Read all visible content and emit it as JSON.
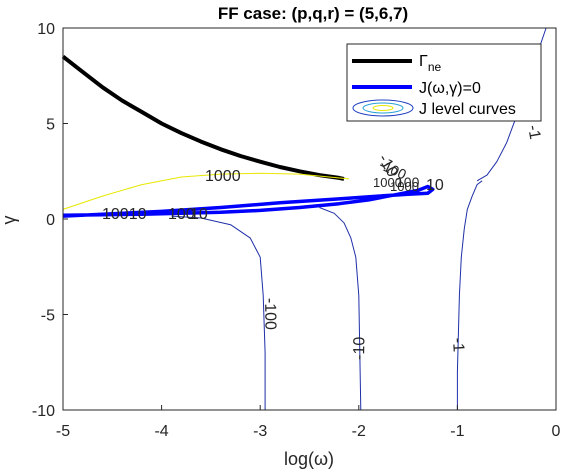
{
  "chart_data": {
    "type": "line",
    "title": "FF case: (p,q,r) = (5,6,7)",
    "xlabel": "log(ω)",
    "ylabel": "γ",
    "xlim": [
      -5,
      0
    ],
    "ylim": [
      -10,
      10
    ],
    "xticks": [
      "-5",
      "-4",
      "-3",
      "-2",
      "-1",
      "0"
    ],
    "yticks": [
      "10",
      "5",
      "0",
      "-5",
      "-10"
    ],
    "xtick_values": [
      -5,
      -4,
      -3,
      -2,
      -1,
      0
    ],
    "ytick_values": [
      10,
      5,
      0,
      -5,
      -10
    ],
    "grid": false,
    "legend_position": "top-right",
    "legend": [
      {
        "label": "Γ",
        "sub": "ne",
        "color": "#000000",
        "style": "thick-line"
      },
      {
        "label": "J(ω,γ)=0",
        "color": "#0000ff",
        "style": "thick-line"
      },
      {
        "label": "J level curves",
        "color": "#1f3fbf",
        "style": "contour-icon"
      }
    ],
    "series": [
      {
        "id": "gamma_ne",
        "color": "#000000",
        "x": [
          -5,
          -4.8,
          -4.6,
          -4.4,
          -4.2,
          -4.0,
          -3.8,
          -3.6,
          -3.4,
          -3.2,
          -3.0,
          -2.8,
          -2.6,
          -2.4,
          -2.2,
          -2.15
        ],
        "y": [
          8.5,
          7.7,
          6.9,
          6.2,
          5.6,
          5.0,
          4.5,
          4.05,
          3.65,
          3.3,
          3.0,
          2.72,
          2.5,
          2.3,
          2.15,
          2.1
        ]
      },
      {
        "id": "j_zero",
        "color": "#0000ff",
        "x": [
          -5,
          -4.6,
          -4.2,
          -3.8,
          -3.4,
          -3.0,
          -2.6,
          -2.2,
          -1.9,
          -1.6,
          -1.4,
          -1.3,
          -1.25,
          -1.3,
          -1.5,
          -1.8,
          -2.2,
          -2.8,
          -3.4,
          -4.0,
          -4.6,
          -5
        ],
        "y": [
          0.2,
          0.22,
          0.25,
          0.3,
          0.35,
          0.45,
          0.6,
          0.8,
          1.0,
          1.3,
          1.5,
          1.7,
          1.55,
          1.35,
          1.3,
          1.2,
          1.05,
          0.85,
          0.6,
          0.4,
          0.25,
          0.15
        ]
      },
      {
        "id": "level_m1_left",
        "color": "#1f2fa8",
        "x": [
          -1.0,
          -1.0,
          -0.99,
          -0.98,
          -0.96,
          -0.93,
          -0.9,
          -0.85,
          -0.8,
          -0.75
        ],
        "y": [
          -10,
          -8,
          -6,
          -4,
          -2,
          -0.5,
          0.5,
          1.2,
          1.8,
          2.0
        ]
      },
      {
        "id": "level_m1_right",
        "color": "#1f2fa8",
        "x": [
          -0.8,
          -0.7,
          -0.6,
          -0.5,
          -0.4,
          -0.3,
          -0.2,
          -0.1
        ],
        "y": [
          2.0,
          2.3,
          3.0,
          4.0,
          5.4,
          7.0,
          8.5,
          10.0
        ]
      },
      {
        "id": "level_m10",
        "color": "#1f2fa8",
        "x": [
          -1.98,
          -1.99,
          -2.0,
          -2.03,
          -2.08,
          -2.15,
          -2.25,
          -2.4
        ],
        "y": [
          -10,
          -7,
          -4,
          -2,
          -1,
          -0.2,
          0.3,
          0.6
        ]
      },
      {
        "id": "level_m100",
        "color": "#1f2fa8",
        "x": [
          -2.95,
          -2.95,
          -2.97,
          -3.0,
          -3.1,
          -3.3,
          -3.6,
          -3.9
        ],
        "y": [
          -10,
          -7,
          -4,
          -2,
          -1,
          -0.3,
          0.05,
          0.15
        ]
      },
      {
        "id": "level_1000",
        "color": "#e8e800",
        "x": [
          -5,
          -4.6,
          -4.2,
          -3.8,
          -3.4,
          -3.0,
          -2.6,
          -2.3,
          -2.1
        ],
        "y": [
          0.5,
          1.2,
          1.8,
          2.2,
          2.35,
          2.4,
          2.35,
          2.2,
          2.1
        ]
      }
    ],
    "annotations": [
      "-1",
      "-1",
      "-10",
      "-100",
      "-10",
      "-100",
      "1000",
      "1000",
      "1000",
      "10010",
      "100",
      "10",
      "100",
      "10"
    ]
  }
}
